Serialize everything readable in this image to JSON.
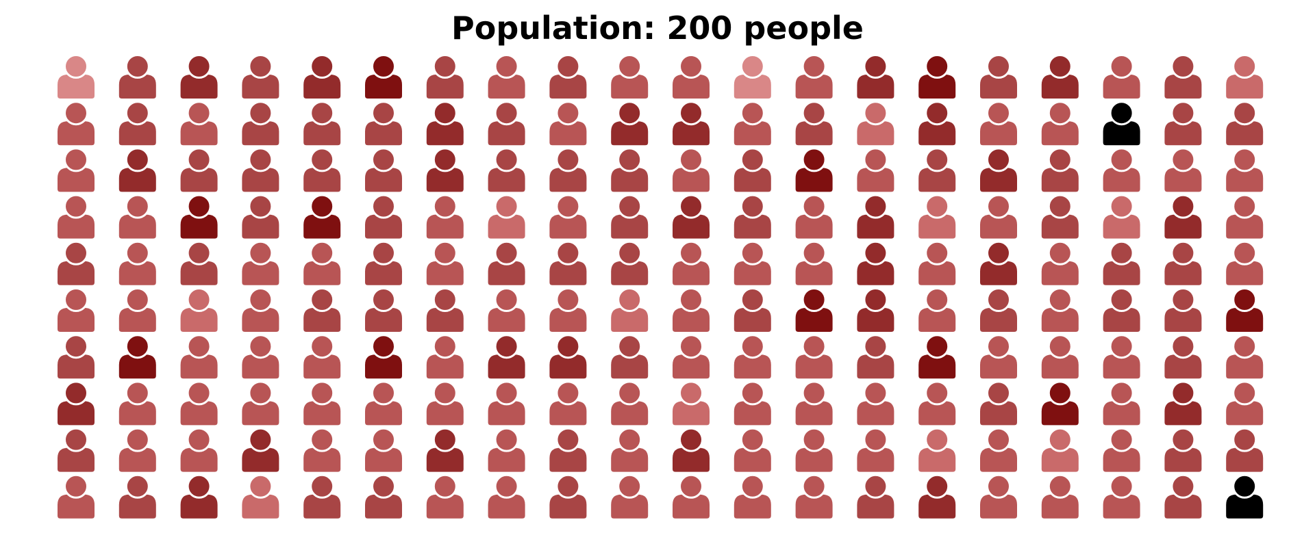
{
  "chart_data": {
    "type": "pictogram",
    "title": "Population: 200 people",
    "icon": "person-icon",
    "rows": 10,
    "columns": 20,
    "total": 200,
    "color_scale": [
      "#d98787",
      "#c96a6a",
      "#b85555",
      "#a84545",
      "#932b2b",
      "#7f1010"
    ],
    "cells": [
      [
        0,
        3,
        4,
        3,
        4,
        5,
        3,
        2,
        3,
        2,
        2,
        0,
        2,
        4,
        5,
        3,
        4,
        2,
        3,
        1
      ],
      [
        2,
        3,
        2,
        3,
        3,
        3,
        4,
        3,
        2,
        4,
        4,
        2,
        3,
        1,
        4,
        2,
        2,
        6,
        3,
        3
      ],
      [
        2,
        4,
        3,
        3,
        3,
        3,
        4,
        3,
        3,
        3,
        2,
        3,
        5,
        2,
        3,
        4,
        3,
        2,
        2,
        2
      ],
      [
        2,
        2,
        5,
        3,
        5,
        3,
        2,
        1,
        2,
        3,
        4,
        3,
        2,
        4,
        1,
        2,
        3,
        1,
        4,
        2
      ],
      [
        3,
        2,
        3,
        2,
        2,
        3,
        2,
        3,
        3,
        3,
        2,
        2,
        2,
        4,
        2,
        4,
        2,
        3,
        3,
        2
      ],
      [
        2,
        2,
        1,
        2,
        3,
        3,
        3,
        2,
        2,
        1,
        2,
        3,
        5,
        4,
        2,
        3,
        2,
        3,
        3,
        5
      ],
      [
        3,
        5,
        2,
        2,
        2,
        5,
        2,
        4,
        4,
        3,
        2,
        2,
        2,
        3,
        5,
        2,
        2,
        2,
        3,
        2
      ],
      [
        4,
        2,
        2,
        2,
        2,
        2,
        2,
        2,
        2,
        2,
        1,
        2,
        2,
        2,
        2,
        3,
        5,
        2,
        4,
        2
      ],
      [
        3,
        2,
        2,
        4,
        2,
        2,
        4,
        2,
        3,
        2,
        4,
        2,
        2,
        2,
        1,
        2,
        1,
        2,
        3,
        3
      ],
      [
        2,
        3,
        4,
        1,
        3,
        3,
        2,
        2,
        3,
        2,
        2,
        2,
        2,
        3,
        4,
        2,
        2,
        2,
        3,
        6
      ]
    ]
  }
}
